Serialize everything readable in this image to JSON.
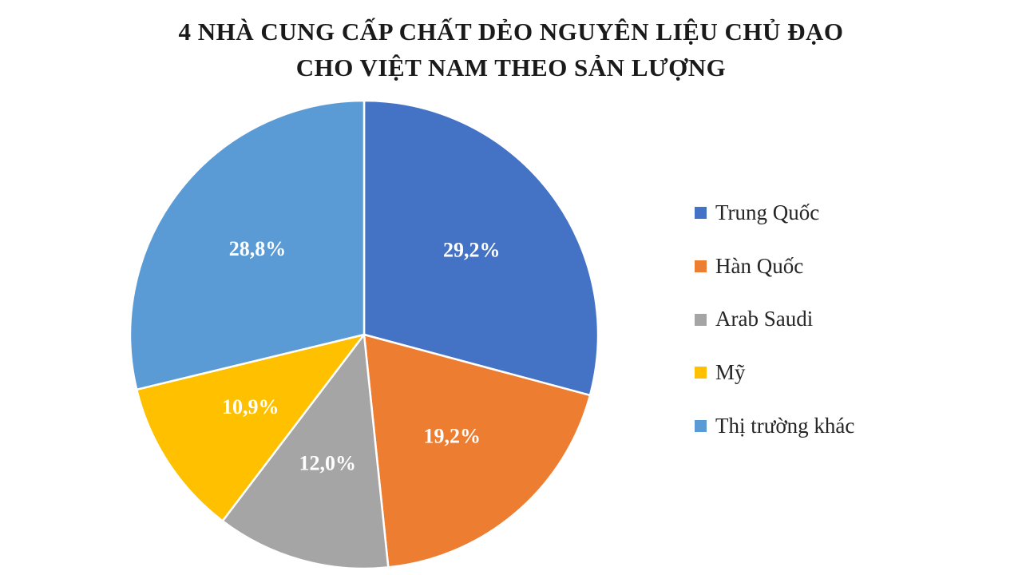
{
  "chart_data": {
    "type": "pie",
    "title": "4 NHÀ CUNG CẤP CHẤT DẺO NGUYÊN LIỆU CHỦ ĐẠO\nCHO VIỆT NAM THEO SẢN LƯỢNG",
    "categories": [
      "Trung Quốc",
      "Hàn Quốc",
      "Arab Saudi",
      "Mỹ",
      "Thị trường khác"
    ],
    "values": [
      29.2,
      19.2,
      12.0,
      10.9,
      28.8
    ],
    "display_labels": [
      "29,2%",
      "19,2%",
      "12,0%",
      "10,9%",
      "28,8%"
    ],
    "colors": [
      "#4472C4",
      "#ED7D31",
      "#A5A5A5",
      "#FFC000",
      "#5B9BD5"
    ],
    "start_angle_deg": 0,
    "direction": "clockwise",
    "legend_position": "right",
    "label_color": "#ffffff",
    "background_color": "#ffffff"
  }
}
